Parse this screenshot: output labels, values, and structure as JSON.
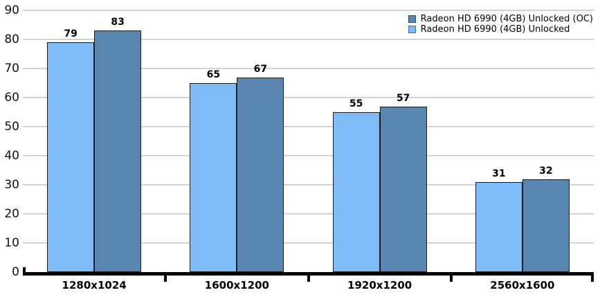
{
  "chart": {
    "background_color": "#ffffff",
    "gridline_color": "#c4c4c4",
    "axis_color": "#000000",
    "bar_border_color": "#1c1c1c",
    "text_color": "#000000"
  },
  "chart_data": {
    "type": "bar",
    "title": "",
    "xlabel": "",
    "ylabel": "",
    "categories": [
      "1280x1024",
      "1600x1200",
      "1920x1200",
      "2560x1600"
    ],
    "series": [
      {
        "name": "Radeon HD 6990 (4GB) Unlocked (OC)",
        "color": "#5885B2",
        "swatch_border_color": "#2e4d6b",
        "values": [
          83,
          67,
          57,
          32
        ]
      },
      {
        "name": "Radeon HD 6990 (4GB) Unlocked",
        "color": "#7FBBF7",
        "swatch_border_color": "#3f6ea6",
        "values": [
          79,
          65,
          55,
          31
        ]
      }
    ],
    "bar_order_within_group": [
      "Radeon HD 6990 (4GB) Unlocked",
      "Radeon HD 6990 (4GB) Unlocked (OC)"
    ],
    "ylim": [
      0,
      90
    ],
    "ytick_step": 10,
    "ytick_labels": [
      "0",
      "10",
      "20",
      "30",
      "40",
      "50",
      "60",
      "70",
      "80",
      "90"
    ],
    "grid": "horizontal",
    "legend_position": "top-right",
    "value_labels": true
  }
}
